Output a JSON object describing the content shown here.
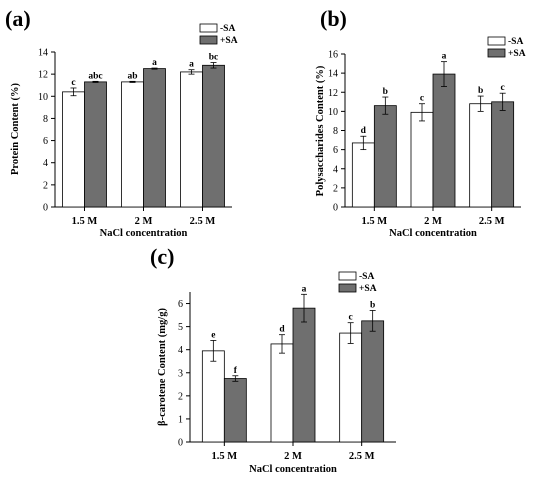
{
  "colors": {
    "minus_sa": "#ffffff",
    "plus_sa": "#6f6f6f",
    "axis": "#000000"
  },
  "chart_data": [
    {
      "panel": "(a)",
      "type": "bar",
      "categories": [
        "1.5 M",
        "2 M",
        "2.5 M"
      ],
      "xlabel": "NaCl concentration",
      "ylabel": "Protein Content (%)",
      "ylim": [
        0,
        14
      ],
      "yticks": [
        0,
        2,
        4,
        6,
        8,
        10,
        12,
        14
      ],
      "legend_position": "top-right",
      "series": [
        {
          "name": "-SA",
          "values": [
            10.4,
            11.3,
            12.2
          ],
          "errors": [
            0.35,
            0.05,
            0.2
          ],
          "letters": [
            "c",
            "ab",
            "a"
          ]
        },
        {
          "name": "+SA",
          "values": [
            11.3,
            12.5,
            12.8
          ],
          "errors": [
            0.05,
            0.05,
            0.25
          ],
          "letters": [
            "abc",
            "a",
            "bc"
          ]
        }
      ]
    },
    {
      "panel": "(b)",
      "type": "bar",
      "categories": [
        "1.5 M",
        "2 M",
        "2.5 M"
      ],
      "xlabel": "NaCl concentration",
      "ylabel": "Polysaccharides Content (%)",
      "ylim": [
        0,
        16
      ],
      "yticks": [
        0,
        2,
        4,
        6,
        8,
        10,
        12,
        14,
        16
      ],
      "legend_position": "top-right",
      "series": [
        {
          "name": "-SA",
          "values": [
            6.7,
            9.9,
            10.8
          ],
          "errors": [
            0.7,
            0.9,
            0.8
          ],
          "letters": [
            "d",
            "c",
            "b"
          ]
        },
        {
          "name": "+SA",
          "values": [
            10.6,
            13.9,
            11.0
          ],
          "errors": [
            0.9,
            1.3,
            0.9
          ],
          "letters": [
            "b",
            "a",
            "c"
          ]
        }
      ]
    },
    {
      "panel": "(c)",
      "type": "bar",
      "categories": [
        "1.5 M",
        "2 M",
        "2.5 M"
      ],
      "xlabel": "NaCl concentration",
      "ylabel": "β-carotene Content (mg/g)",
      "ylim": [
        0,
        6.5
      ],
      "yticks": [
        0,
        1,
        2,
        3,
        4,
        5,
        6
      ],
      "legend_position": "top-right",
      "series": [
        {
          "name": "-SA",
          "values": [
            3.95,
            4.25,
            4.72
          ],
          "errors": [
            0.45,
            0.4,
            0.45
          ],
          "letters": [
            "e",
            "d",
            "c"
          ]
        },
        {
          "name": "+SA",
          "values": [
            2.75,
            5.8,
            5.25
          ],
          "errors": [
            0.12,
            0.6,
            0.45
          ],
          "letters": [
            "f",
            "a",
            "b"
          ]
        }
      ]
    }
  ]
}
